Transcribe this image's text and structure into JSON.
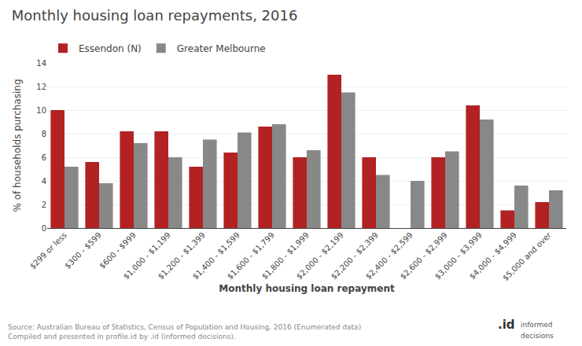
{
  "chart_data": {
    "type": "bar",
    "title": "Monthly housing loan repayments, 2016",
    "xlabel": "Monthly housing loan repayment",
    "ylabel": "% of households purchasing",
    "categories": [
      "$299 or less",
      "$300 - $599",
      "$600 - $999",
      "$1,000 - $1,199",
      "$1,200 - $1,399",
      "$1,400 - $1,599",
      "$1,600 - $1,799",
      "$1,800 - $1,999",
      "$2,000 - $2,199",
      "$2,200 - $2,399",
      "$2,400 - $2,599",
      "$2,600 - $2,999",
      "$3,000 - $3,999",
      "$4,000 - $4,999",
      "$5,000 and over"
    ],
    "series": [
      {
        "name": "Essendon (N)",
        "color": "#b22222",
        "values": [
          10.0,
          5.6,
          8.2,
          8.2,
          5.2,
          6.4,
          8.6,
          6.0,
          13.0,
          6.0,
          0.0,
          6.0,
          10.4,
          1.5,
          2.2
        ]
      },
      {
        "name": "Greater Melbourne",
        "color": "#888888",
        "values": [
          5.2,
          3.8,
          7.2,
          6.0,
          7.5,
          8.1,
          8.8,
          6.6,
          11.5,
          4.5,
          4.0,
          6.5,
          9.2,
          3.6,
          3.2
        ]
      }
    ],
    "ylim": [
      0,
      14
    ],
    "yticks": [
      0,
      2,
      4,
      6,
      8,
      10,
      12,
      14
    ],
    "grid": true,
    "legend": "upper left",
    "annotations": [
      "Source: Australian Bureau of Statistics, Census of Population and Housing, 2016 (Enumerated data)",
      "Compiled and presented in profile.id by .id (informed decisions).",
      ".id",
      "informed",
      "decisions"
    ]
  }
}
